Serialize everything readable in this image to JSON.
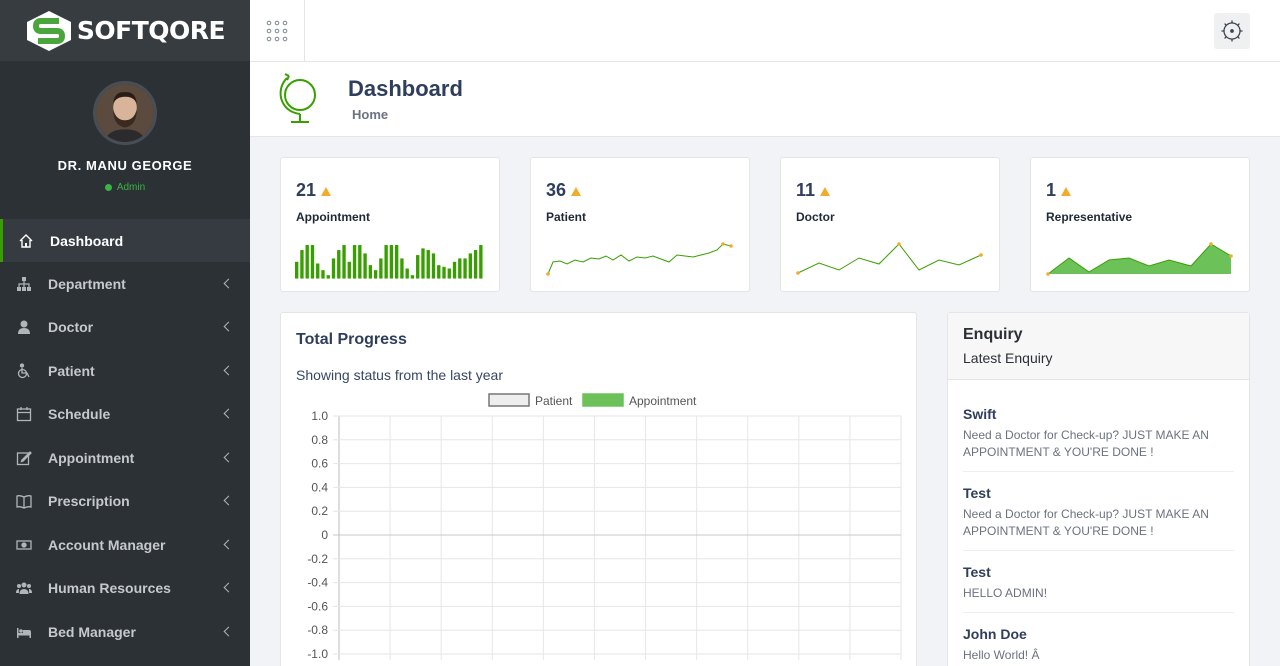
{
  "brand": {
    "name": "SOFTQORE",
    "accent": "#37a000"
  },
  "user": {
    "name": "DR. MANU GEORGE",
    "role": "Admin"
  },
  "sidebar": {
    "items": [
      {
        "label": "Dashboard",
        "icon": "home-icon",
        "active": true
      },
      {
        "label": "Department",
        "icon": "sitemap-icon"
      },
      {
        "label": "Doctor",
        "icon": "user-md-icon"
      },
      {
        "label": "Patient",
        "icon": "wheelchair-icon"
      },
      {
        "label": "Schedule",
        "icon": "calendar-icon"
      },
      {
        "label": "Appointment",
        "icon": "edit-icon"
      },
      {
        "label": "Prescription",
        "icon": "book-icon"
      },
      {
        "label": "Account Manager",
        "icon": "money-icon"
      },
      {
        "label": "Human Resources",
        "icon": "users-icon"
      },
      {
        "label": "Bed Manager",
        "icon": "bed-icon"
      }
    ]
  },
  "header": {
    "title": "Dashboard",
    "breadcrumb": "Home"
  },
  "stats": [
    {
      "value": "21",
      "label": "Appointment"
    },
    {
      "value": "36",
      "label": "Patient"
    },
    {
      "value": "11",
      "label": "Doctor"
    },
    {
      "value": "1",
      "label": "Representative"
    }
  ],
  "progress": {
    "title": "Total Progress",
    "subtitle": "Showing status from the last year"
  },
  "chart_data": {
    "type": "bar",
    "legend": [
      "Patient",
      "Appointment"
    ],
    "legend_position": "top",
    "series": [
      {
        "name": "Patient",
        "values": [],
        "color": "#eeeeee"
      },
      {
        "name": "Appointment",
        "values": [],
        "color": "#6cc259"
      }
    ],
    "yticks": [
      "1.0",
      "0.8",
      "0.6",
      "0.4",
      "0.2",
      "0",
      "-0.2",
      "-0.4",
      "-0.6",
      "-0.8",
      "-1.0"
    ],
    "ylim": [
      -1.0,
      1.0
    ],
    "grid": true
  },
  "enquiry": {
    "title": "Enquiry",
    "subtitle": "Latest Enquiry",
    "items": [
      {
        "name": "Swift",
        "message": "Need a Doctor for Check-up? JUST MAKE AN APPOINTMENT & YOU'RE DONE !"
      },
      {
        "name": "Test",
        "message": "Need a Doctor for Check-up? JUST MAKE AN APPOINTMENT & YOU'RE DONE !"
      },
      {
        "name": "Test",
        "message": "HELLO ADMIN!"
      },
      {
        "name": "John Doe",
        "message": "Hello World! Â"
      }
    ]
  }
}
